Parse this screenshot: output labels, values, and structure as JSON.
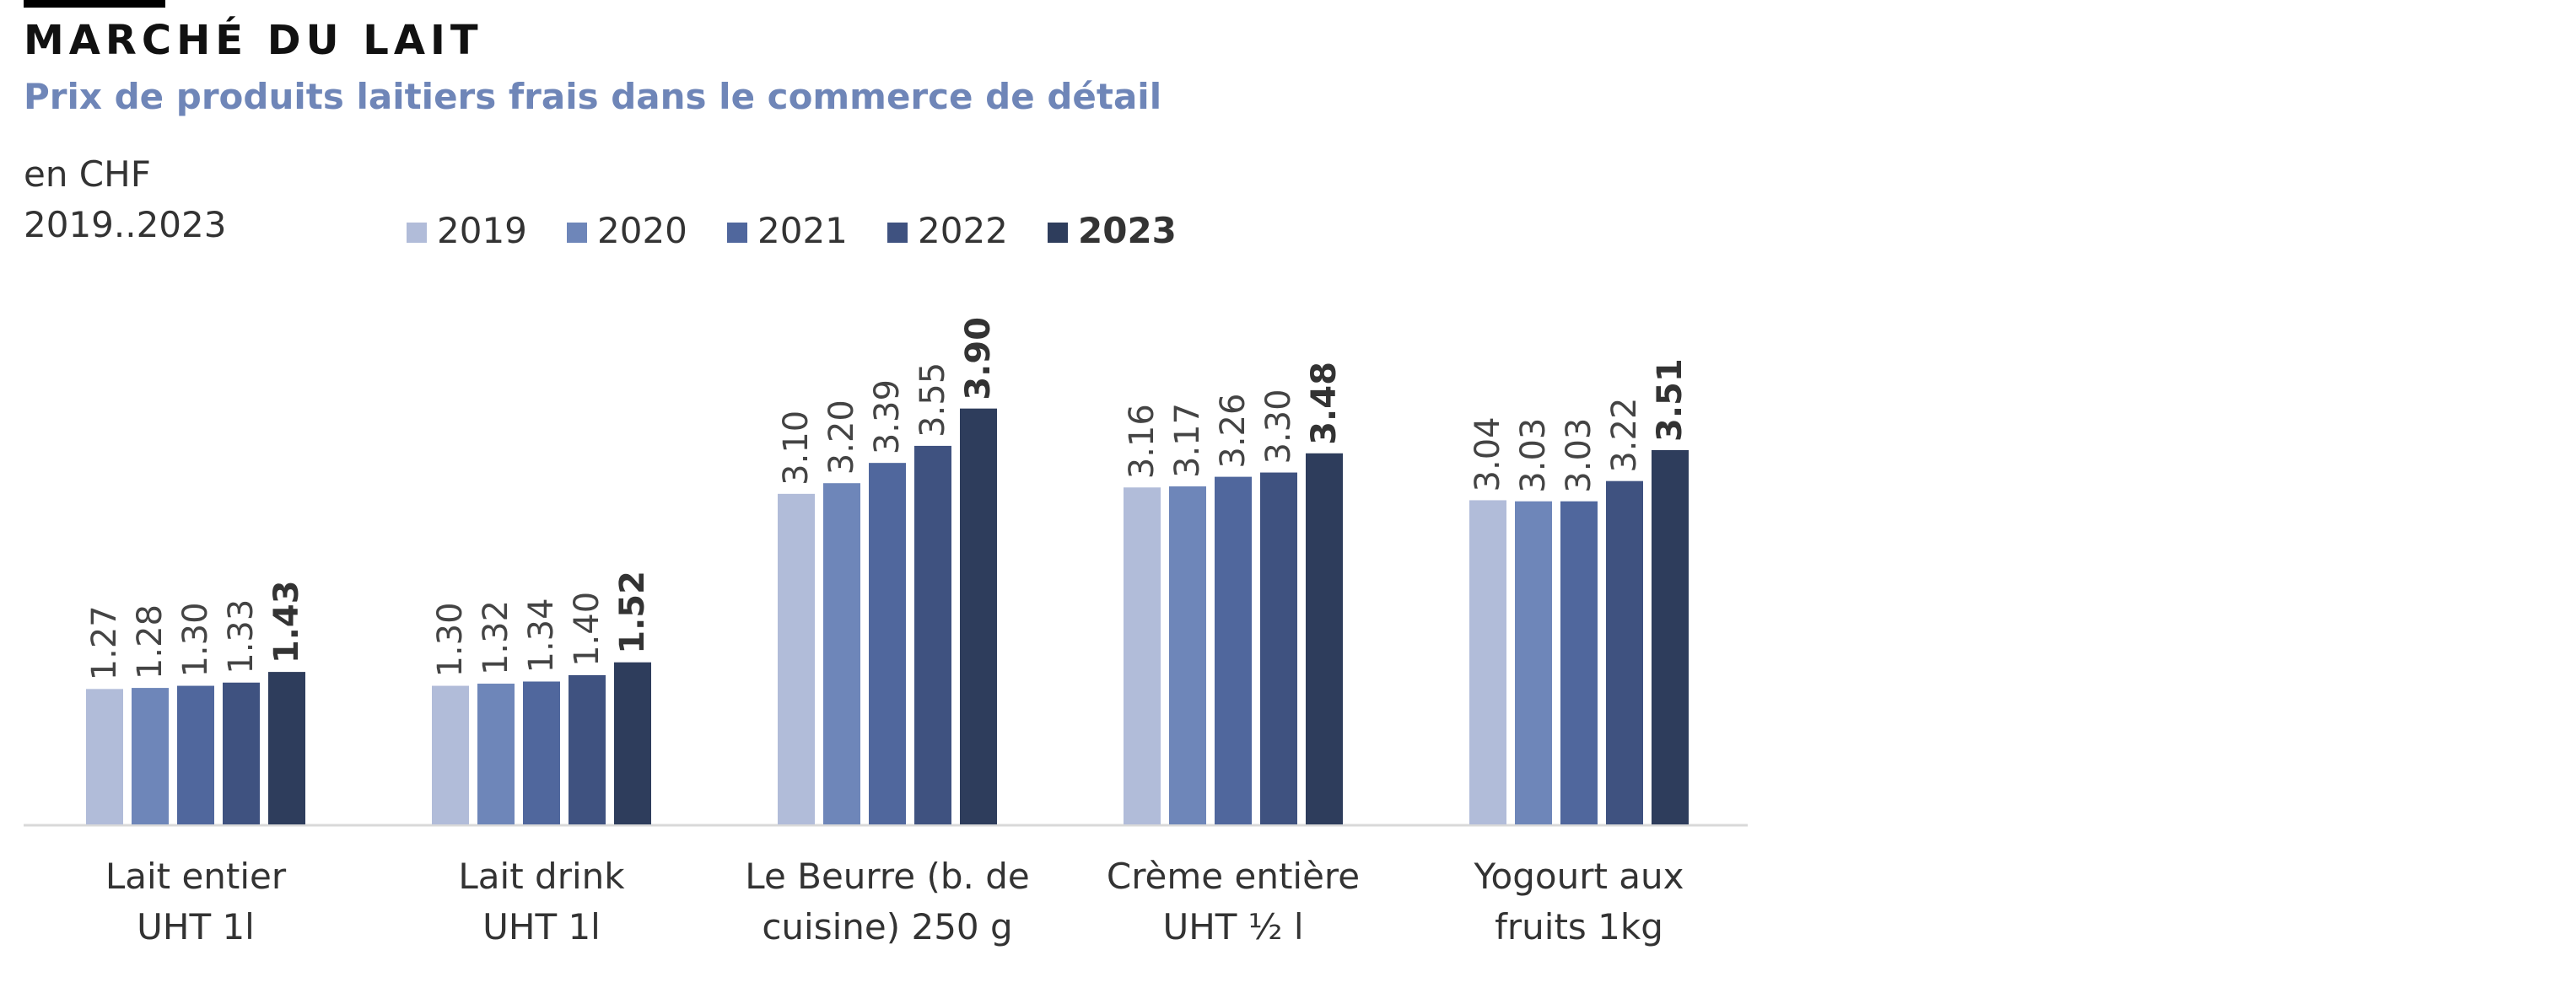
{
  "header": {
    "title": "MARCHÉ DU LAIT",
    "subtitle": "Prix de produits laitiers frais dans le commerce de détail",
    "unit": "en CHF",
    "period": "2019..2023"
  },
  "colors": {
    "series": [
      "#b1bcd9",
      "#6e86b9",
      "#50679d",
      "#3f5280",
      "#2e3d5c"
    ],
    "subtitle": "#6f86b8",
    "label": "#444444",
    "axis": "#d9d9d9"
  },
  "chart_data": {
    "type": "bar",
    "title": "Prix de produits laitiers frais dans le commerce de détail",
    "ylabel": "en CHF",
    "xlabel": "",
    "ylim": [
      0,
      4.6
    ],
    "grid": false,
    "legend_position": "top",
    "highlight_series": "2023",
    "categories": [
      [
        "Lait entier",
        "UHT 1l"
      ],
      [
        "Lait drink",
        "UHT 1l"
      ],
      [
        "Le Beurre (b. de",
        "cuisine) 250 g"
      ],
      [
        "Crème entière",
        "UHT ½ l"
      ],
      [
        "Yogourt aux",
        "fruits 1kg"
      ]
    ],
    "series": [
      {
        "name": "2019",
        "values": [
          1.27,
          1.3,
          3.1,
          3.16,
          3.04
        ]
      },
      {
        "name": "2020",
        "values": [
          1.28,
          1.32,
          3.2,
          3.17,
          3.03
        ]
      },
      {
        "name": "2021",
        "values": [
          1.3,
          1.34,
          3.39,
          3.26,
          3.03
        ]
      },
      {
        "name": "2022",
        "values": [
          1.33,
          1.4,
          3.55,
          3.3,
          3.22
        ]
      },
      {
        "name": "2023",
        "values": [
          1.43,
          1.52,
          3.9,
          3.48,
          3.51
        ]
      }
    ]
  }
}
